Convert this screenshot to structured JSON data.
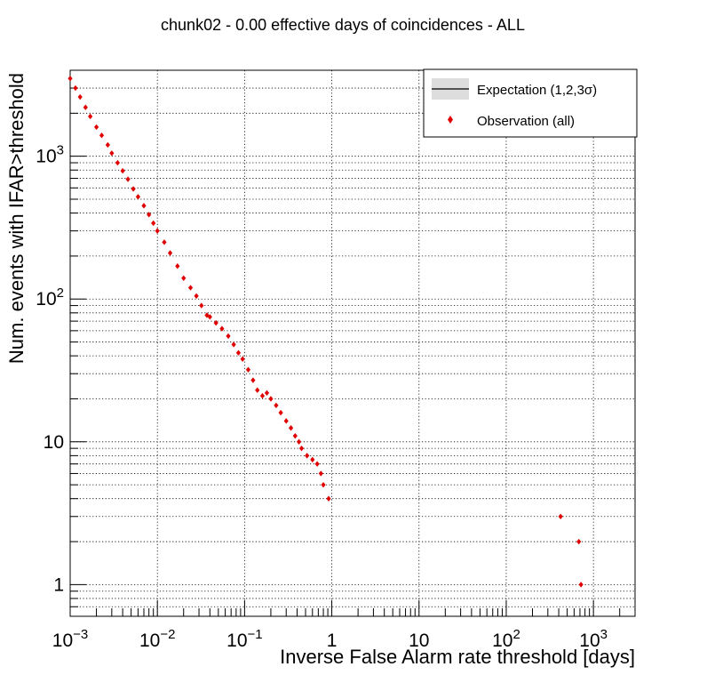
{
  "chart_data": {
    "type": "scatter",
    "title": "chunk02 - 0.00 effective days of coincidences - ALL",
    "xlabel": "Inverse False Alarm rate threshold [days]",
    "ylabel": "Num. events with IFAR>threshold",
    "x_scale": "log",
    "y_scale": "log",
    "xlim": [
      0.001,
      3000
    ],
    "ylim": [
      0.6,
      4000
    ],
    "grid": true,
    "x_tick_labels": [
      {
        "value": 0.001,
        "base": "10",
        "exp": "−3"
      },
      {
        "value": 0.01,
        "base": "10",
        "exp": "−2"
      },
      {
        "value": 0.1,
        "base": "10",
        "exp": "−1"
      },
      {
        "value": 1,
        "base": "1",
        "exp": ""
      },
      {
        "value": 10,
        "base": "10",
        "exp": ""
      },
      {
        "value": 100,
        "base": "10",
        "exp": "2"
      },
      {
        "value": 1000,
        "base": "10",
        "exp": "3"
      }
    ],
    "y_tick_labels": [
      {
        "value": 1,
        "base": "1",
        "exp": ""
      },
      {
        "value": 10,
        "base": "10",
        "exp": ""
      },
      {
        "value": 100,
        "base": "10",
        "exp": "2"
      },
      {
        "value": 1000,
        "base": "10",
        "exp": "3"
      }
    ],
    "legend": {
      "placement": "top-right",
      "entries": [
        {
          "label": "Expectation (1,2,3σ)",
          "style": "band-line"
        },
        {
          "label": "Observation (all)",
          "style": "marker"
        }
      ]
    },
    "colors": {
      "observation": "#e00000",
      "expectation_band": "#dddddd",
      "expectation_line": "#000000"
    },
    "series": [
      {
        "name": "Observation (all)",
        "style": "marker",
        "points": [
          [
            0.001,
            3500
          ],
          [
            0.00115,
            3000
          ],
          [
            0.0013,
            2600
          ],
          [
            0.0015,
            2200
          ],
          [
            0.0017,
            1900
          ],
          [
            0.002,
            1600
          ],
          [
            0.0023,
            1400
          ],
          [
            0.0027,
            1200
          ],
          [
            0.003,
            1050
          ],
          [
            0.0035,
            900
          ],
          [
            0.004,
            790
          ],
          [
            0.0046,
            690
          ],
          [
            0.0053,
            590
          ],
          [
            0.006,
            520
          ],
          [
            0.007,
            450
          ],
          [
            0.008,
            390
          ],
          [
            0.009,
            340
          ],
          [
            0.01,
            300
          ],
          [
            0.012,
            250
          ],
          [
            0.014,
            210
          ],
          [
            0.017,
            170
          ],
          [
            0.02,
            140
          ],
          [
            0.024,
            120
          ],
          [
            0.028,
            105
          ],
          [
            0.032,
            90
          ],
          [
            0.037,
            77
          ],
          [
            0.04,
            75
          ],
          [
            0.047,
            68
          ],
          [
            0.055,
            62
          ],
          [
            0.065,
            55
          ],
          [
            0.075,
            48
          ],
          [
            0.085,
            42
          ],
          [
            0.095,
            38
          ],
          [
            0.11,
            32
          ],
          [
            0.125,
            27
          ],
          [
            0.14,
            23
          ],
          [
            0.16,
            21
          ],
          [
            0.18,
            22
          ],
          [
            0.2,
            20
          ],
          [
            0.23,
            18
          ],
          [
            0.26,
            16
          ],
          [
            0.3,
            14
          ],
          [
            0.34,
            12.5
          ],
          [
            0.38,
            11
          ],
          [
            0.42,
            10
          ],
          [
            0.45,
            9
          ],
          [
            0.52,
            8
          ],
          [
            0.6,
            7.5
          ],
          [
            0.68,
            7
          ],
          [
            0.75,
            6
          ],
          [
            0.8,
            5
          ],
          [
            0.92,
            4
          ],
          [
            420,
            3
          ],
          [
            680,
            2
          ],
          [
            720,
            1
          ]
        ]
      }
    ]
  }
}
